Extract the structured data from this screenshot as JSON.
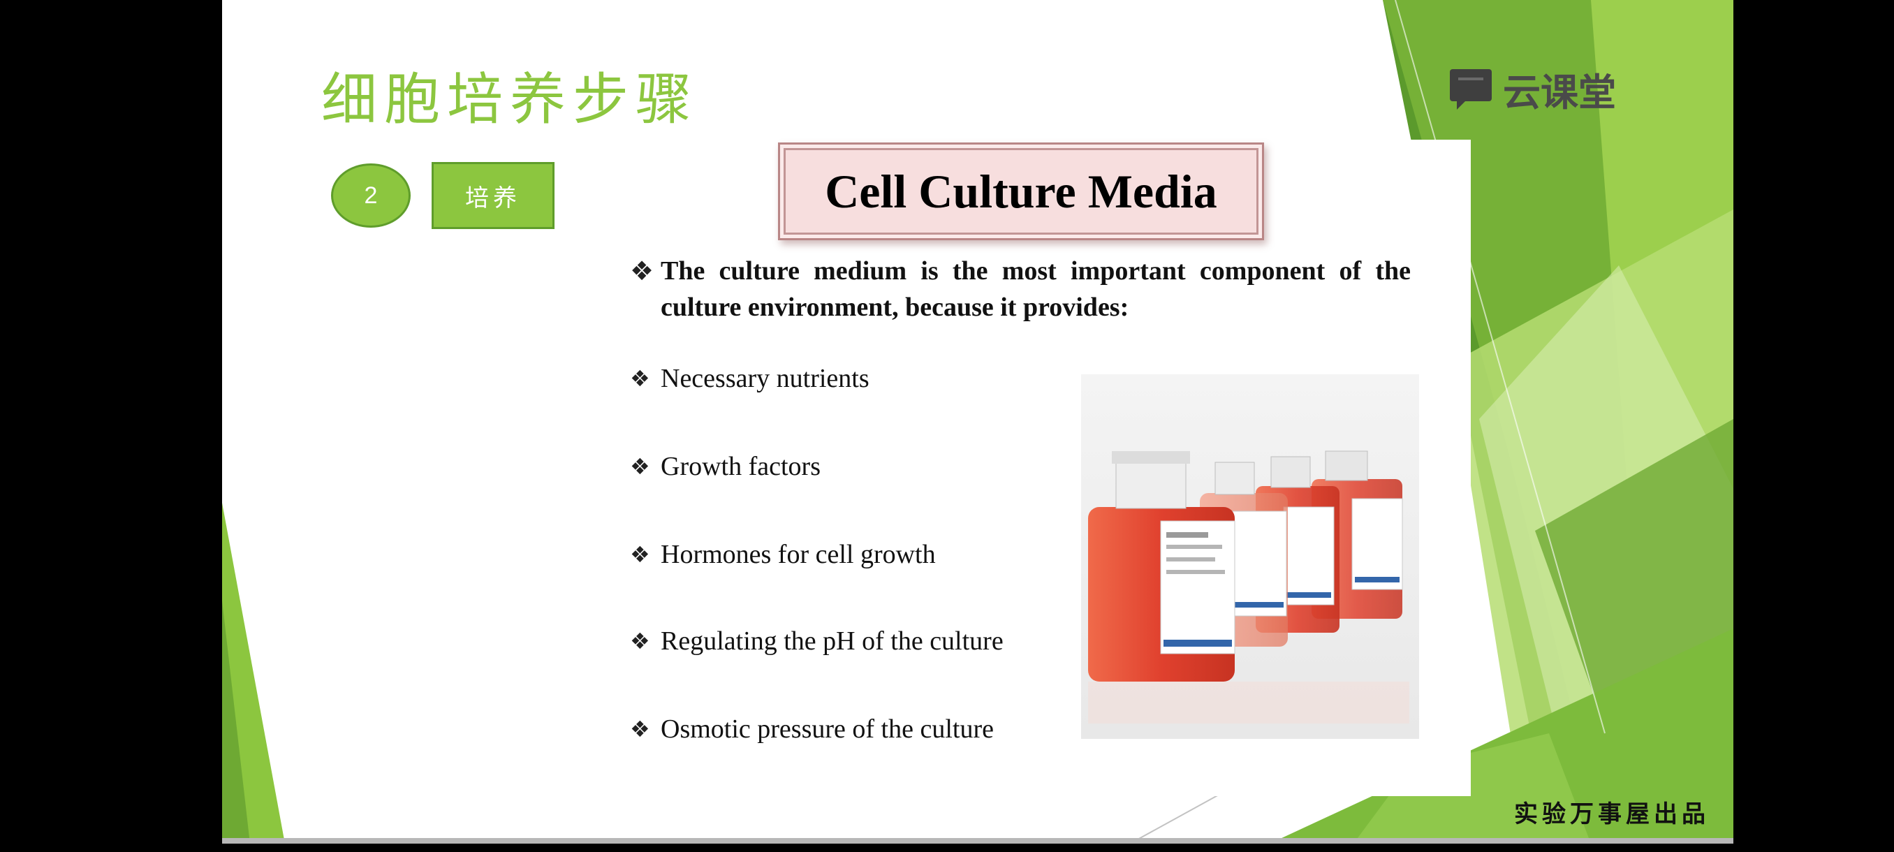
{
  "slide": {
    "title": "细胞培养步骤",
    "logo_text": "云课堂",
    "step_number": "2",
    "step_label": "培养",
    "media_title": "Cell Culture Media",
    "intro": "The culture medium is the most important component of the culture environment, because it provides:",
    "bullet_symbol": "❖",
    "items": [
      "Necessary nutrients",
      "Growth factors",
      "Hormones for cell growth",
      "Regulating the pH of the culture",
      "Osmotic pressure of the culture"
    ],
    "credit": "实验万事屋出品",
    "icons": {
      "logo": "chat-bubble-icon",
      "bullet": "diamond-bullet-icon"
    }
  },
  "colors": {
    "accent_green": "#8cc63f",
    "dark_green": "#5f9d2b",
    "title_box_pink": "#f7dede",
    "media_red": "#e0412e"
  }
}
